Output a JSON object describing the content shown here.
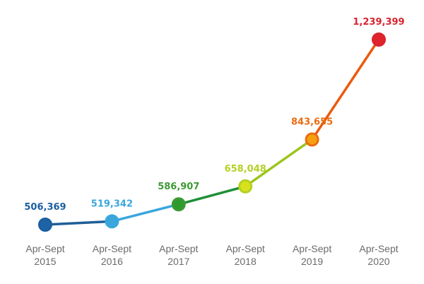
{
  "chart_data": {
    "type": "line",
    "title": "",
    "xlabel": "",
    "ylabel": "",
    "ylim": [
      480000,
      1260000
    ],
    "categories": [
      {
        "line1": "Apr-Sept",
        "line2": "2015"
      },
      {
        "line1": "Apr-Sept",
        "line2": "2016"
      },
      {
        "line1": "Apr-Sept",
        "line2": "2017"
      },
      {
        "line1": "Apr-Sept",
        "line2": "2018"
      },
      {
        "line1": "Apr-Sept",
        "line2": "2019"
      },
      {
        "line1": "Apr-Sept",
        "line2": "2020"
      }
    ],
    "points": [
      {
        "value": 506369,
        "label": "506,369",
        "color": "#1a5fa0",
        "fill": "#1f63a7"
      },
      {
        "value": 519342,
        "label": "519,342",
        "color": "#3aa6dc",
        "fill": "#3aa6dc"
      },
      {
        "value": 586907,
        "label": "586,907",
        "color": "#3d9a35",
        "fill": "#2f9a2c"
      },
      {
        "value": 658048,
        "label": "658,048",
        "color": "#b5d025",
        "fill": "#d8e21c"
      },
      {
        "value": 843655,
        "label": "843,655",
        "color": "#ea6c12",
        "fill": "#f5a10f"
      },
      {
        "value": 1239399,
        "label": "1,239,399",
        "color": "#d8242f",
        "fill": "#e1242c"
      }
    ],
    "segment_colors": [
      "#1f5e96",
      "#3aa6dc",
      "#1f8f37",
      "#9cc51e",
      "#ea5a0e"
    ],
    "grid": false,
    "legend": "none"
  }
}
